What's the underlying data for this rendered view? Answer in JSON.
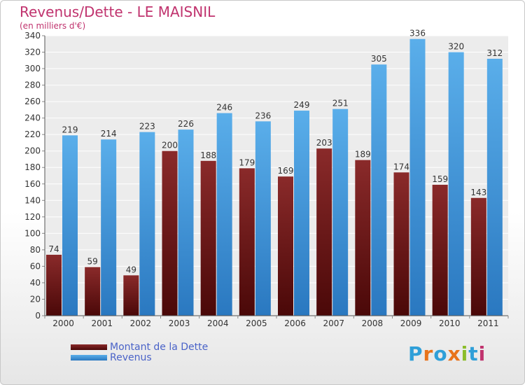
{
  "header": {
    "title": "Revenus/Dette - LE MAISNIL",
    "subtitle": "(en milliers d'€)"
  },
  "logo": {
    "letters": [
      {
        "ch": "P",
        "color": "#2f9fd8"
      },
      {
        "ch": "r",
        "color": "#e8731a"
      },
      {
        "ch": "o",
        "color": "#2f9fd8"
      },
      {
        "ch": "x",
        "color": "#e8731a"
      },
      {
        "ch": "i",
        "color": "#8bbd2a"
      },
      {
        "ch": "t",
        "color": "#2f9fd8"
      },
      {
        "ch": "i",
        "color": "#c0336e"
      }
    ]
  },
  "chart_data": {
    "type": "bar",
    "categories": [
      "2000",
      "2001",
      "2002",
      "2003",
      "2004",
      "2005",
      "2006",
      "2007",
      "2008",
      "2009",
      "2010",
      "2011"
    ],
    "series": [
      {
        "name": "Montant de la Dette",
        "color": "#7a2020",
        "values": [
          74,
          59,
          49,
          200,
          188,
          179,
          169,
          203,
          189,
          174,
          159,
          143
        ]
      },
      {
        "name": "Revenus",
        "color": "#4a9de0",
        "values": [
          219,
          214,
          223,
          226,
          246,
          236,
          249,
          251,
          305,
          336,
          320,
          312
        ]
      }
    ],
    "ylim": [
      0,
      340
    ],
    "yticks": [
      0,
      20,
      40,
      60,
      80,
      100,
      120,
      140,
      160,
      180,
      200,
      220,
      240,
      260,
      280,
      300,
      320,
      340
    ],
    "grid": true,
    "legend_position": "bottom-left"
  }
}
